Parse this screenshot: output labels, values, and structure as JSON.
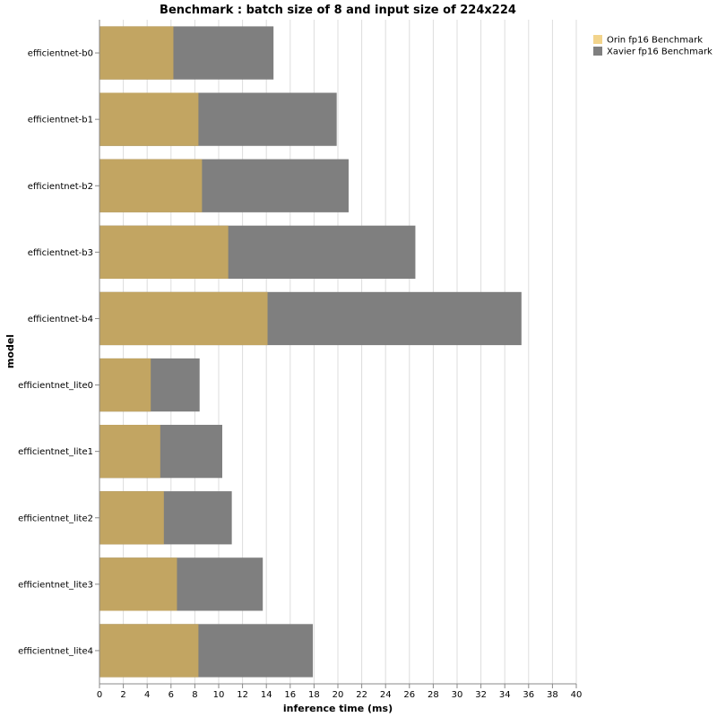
{
  "chart_data": {
    "type": "bar",
    "orientation": "horizontal",
    "stacking": "overlay",
    "title": "Benchmark : batch size of 8 and input size of 224x224",
    "xlabel": "inference time (ms)",
    "ylabel": "model",
    "xlim": [
      0,
      40
    ],
    "xticks": [
      0,
      2,
      4,
      6,
      8,
      10,
      12,
      14,
      16,
      18,
      20,
      22,
      24,
      26,
      28,
      30,
      32,
      34,
      36,
      38,
      40
    ],
    "grid": true,
    "legend_position": "top-right",
    "categories": [
      "efficientnet-b0",
      "efficientnet-b1",
      "efficientnet-b2",
      "efficientnet-b3",
      "efficientnet-b4",
      "efficientnet_lite0",
      "efficientnet_lite1",
      "efficientnet_lite2",
      "efficientnet_lite3",
      "efficientnet_lite4"
    ],
    "series": [
      {
        "name": "Orin fp16 Benchmark",
        "color": "#f2d48c",
        "values": [
          6.2,
          8.3,
          8.6,
          10.8,
          14.1,
          4.3,
          5.1,
          5.4,
          6.5,
          8.3
        ]
      },
      {
        "name": "Xavier fp16 Benchmark",
        "color": "#7f7f7f",
        "values": [
          14.6,
          19.9,
          20.9,
          26.5,
          35.4,
          8.4,
          10.3,
          11.1,
          13.7,
          17.9
        ]
      }
    ]
  }
}
